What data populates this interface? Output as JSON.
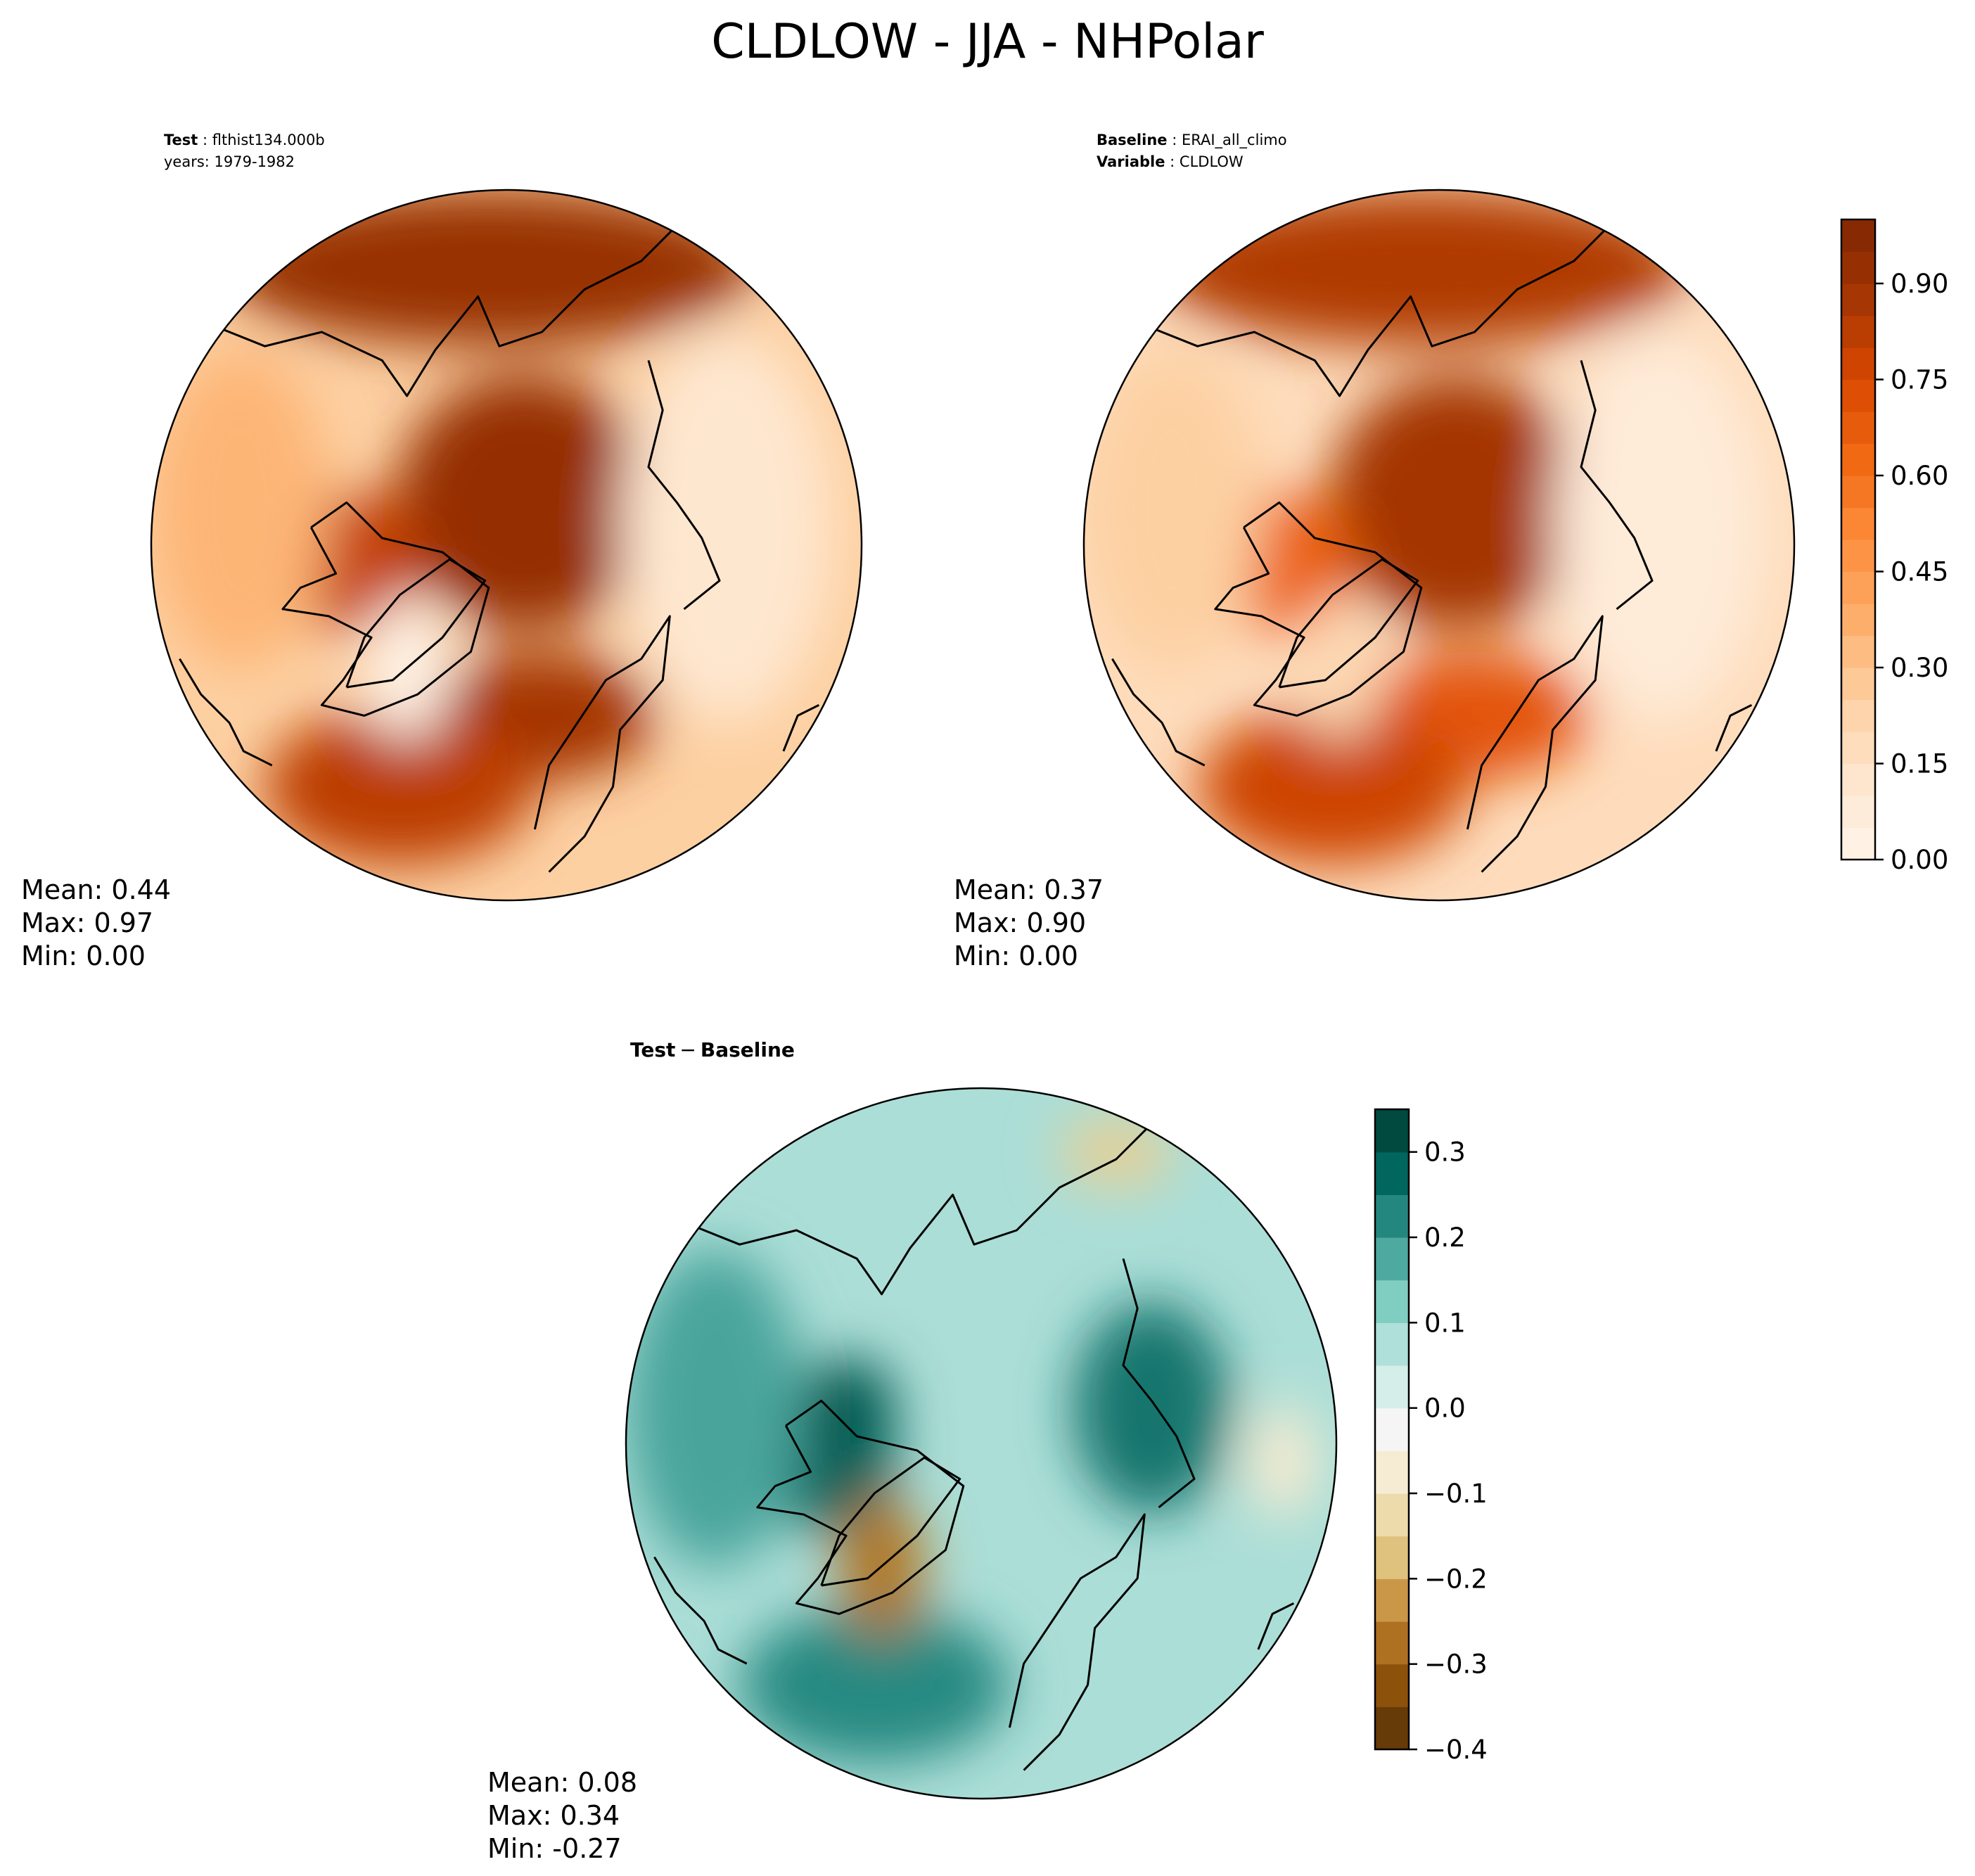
{
  "figure": {
    "title": "CLDLOW - JJA - NHPolar"
  },
  "colors": {
    "background": "#ffffff",
    "map_edge": "#000000",
    "coastline": "#000000",
    "oranges": [
      "#fff5eb",
      "#fee6ce",
      "#fdd0a2",
      "#fdae6b",
      "#fd8d3c",
      "#f16913",
      "#d94801",
      "#a63603",
      "#7f2704"
    ],
    "brbg": [
      "#543005",
      "#8c510a",
      "#bf812d",
      "#dfc27d",
      "#f6e8c3",
      "#f5f5f5",
      "#c7eae5",
      "#80cdc1",
      "#35978f",
      "#01665e",
      "#003c30"
    ]
  },
  "chart_data": [
    {
      "type": "heatmap",
      "projection": "north-polar-stereographic",
      "header_lines": [
        {
          "label": "Test",
          "value": "flthist134.000b"
        },
        {
          "label": "",
          "value": "years: 1979-1982"
        }
      ],
      "stats": [
        "Mean:  0.44",
        "Max:  0.97",
        "Min:  0.00"
      ],
      "mean": 0.44,
      "max": 0.97,
      "min": 0.0,
      "colormap": "Oranges",
      "field": {
        "background": 0.25,
        "blobs": [
          {
            "loc": "north-pacific",
            "value": 0.92
          },
          {
            "loc": "arctic-ocean",
            "value": 0.93
          },
          {
            "loc": "barents-sea",
            "value": 0.88
          },
          {
            "loc": "north-atlantic",
            "value": 0.82
          },
          {
            "loc": "baffin-bay",
            "value": 0.8
          },
          {
            "loc": "greenland",
            "value": 0.02
          },
          {
            "loc": "siberia",
            "value": 0.12
          },
          {
            "loc": "north-america",
            "value": 0.35
          }
        ]
      }
    },
    {
      "type": "heatmap",
      "projection": "north-polar-stereographic",
      "header_lines": [
        {
          "label": "Baseline",
          "value": "ERAI_all_climo"
        },
        {
          "label": "Variable",
          "value": "CLDLOW"
        }
      ],
      "stats": [
        "Mean:  0.37",
        "Max:  0.90",
        "Min:  0.00"
      ],
      "mean": 0.37,
      "max": 0.9,
      "min": 0.0,
      "colormap": "Oranges",
      "colorbar": {
        "range": [
          0.0,
          1.0
        ],
        "tick_values": [
          0.0,
          0.15,
          0.3,
          0.45,
          0.6,
          0.75,
          0.9
        ],
        "tick_labels": [
          "0.00",
          "0.15",
          "0.30",
          "0.45",
          "0.60",
          "0.75",
          "0.90"
        ]
      },
      "field": {
        "background": 0.18,
        "blobs": [
          {
            "loc": "north-pacific",
            "value": 0.85
          },
          {
            "loc": "arctic-ocean",
            "value": 0.88
          },
          {
            "loc": "barents-sea",
            "value": 0.7
          },
          {
            "loc": "north-atlantic",
            "value": 0.78
          },
          {
            "loc": "baffin-bay",
            "value": 0.65
          },
          {
            "loc": "greenland",
            "value": 0.2
          },
          {
            "loc": "siberia",
            "value": 0.08
          },
          {
            "loc": "north-america",
            "value": 0.25
          }
        ]
      }
    },
    {
      "type": "heatmap",
      "projection": "north-polar-stereographic",
      "header_lines": [
        {
          "label": "Test",
          "value": "Baseline"
        }
      ],
      "header_separator": "−",
      "stats": [
        "Mean:  0.08",
        "Max:  0.34",
        "Min: -0.27"
      ],
      "mean": 0.08,
      "max": 0.34,
      "min": -0.27,
      "colormap": "BrBG",
      "colorbar": {
        "range": [
          -0.4,
          0.35
        ],
        "tick_values": [
          -0.4,
          -0.3,
          -0.2,
          -0.1,
          0.0,
          0.1,
          0.2,
          0.3
        ],
        "tick_labels": [
          "−0.4",
          "−0.3",
          "−0.2",
          "−0.1",
          "0.0",
          "0.1",
          "0.2",
          "0.3"
        ]
      },
      "field": {
        "background": 0.08,
        "blobs": [
          {
            "loc": "baffin-bay",
            "value": 0.28
          },
          {
            "loc": "canadian-archipelago",
            "value": 0.3
          },
          {
            "loc": "north-atlantic",
            "value": 0.22
          },
          {
            "loc": "east-siberia",
            "value": 0.25
          },
          {
            "loc": "north-america",
            "value": 0.18
          },
          {
            "loc": "greenland",
            "value": -0.27
          },
          {
            "loc": "kamchatka",
            "value": -0.15
          },
          {
            "loc": "central-asia",
            "value": -0.08
          }
        ]
      }
    }
  ]
}
